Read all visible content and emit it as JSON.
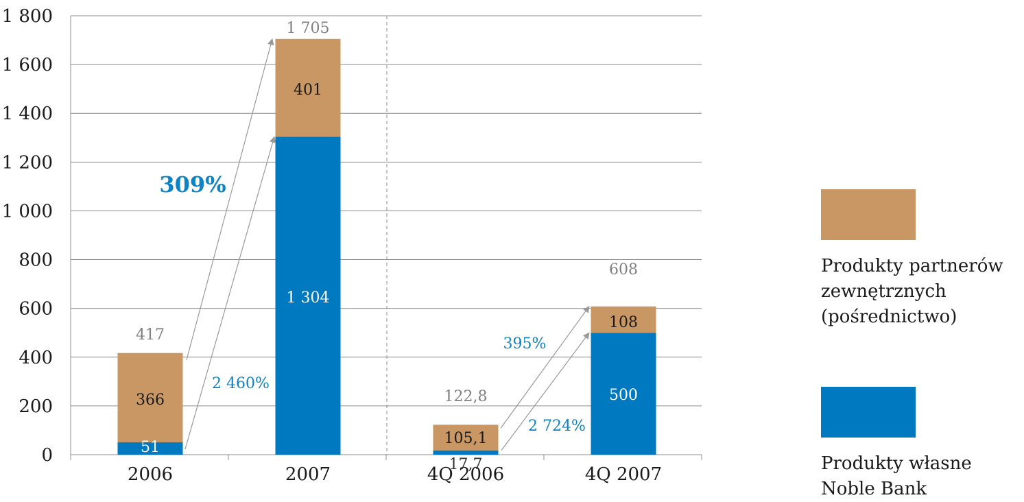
{
  "chart_data": {
    "type": "bar",
    "stacked": true,
    "categories": [
      "2006",
      "2007",
      "4Q 2006",
      "4Q 2007"
    ],
    "ylim": [
      0,
      1800
    ],
    "yticks": [
      "0",
      "200",
      "400",
      "600",
      "800",
      "1 000",
      "1 200",
      "1 400",
      "1 600",
      "1 800"
    ],
    "grid": true,
    "series": [
      {
        "name": "Produkty własne Noble Bank",
        "color": "#0079c1",
        "values": [
          51,
          1304,
          17.7,
          500
        ],
        "labels": [
          "51",
          "1 304",
          "17,7",
          "500"
        ]
      },
      {
        "name": "Produkty partnerów zewnętrznych (pośrednictwo)",
        "color": "#c99764",
        "values": [
          366,
          401,
          105.1,
          108
        ],
        "labels": [
          "366",
          "401",
          "105,1",
          "108"
        ]
      }
    ],
    "totals": [
      417,
      1705,
      122.8,
      608
    ],
    "total_labels": [
      "417",
      "1 705",
      "122,8",
      "608"
    ],
    "annotations": {
      "growth_total_year": "309%",
      "growth_own_year": "2 460%",
      "growth_total_quarter": "395%",
      "growth_own_quarter": "2 724%"
    },
    "legend_position": "right"
  },
  "colors": {
    "own": "#0079c1",
    "partner": "#c99764",
    "grid": "#8c8c8c",
    "total_label": "#7f7f7f",
    "growth": "#0d83c6",
    "arrow": "#999999"
  }
}
